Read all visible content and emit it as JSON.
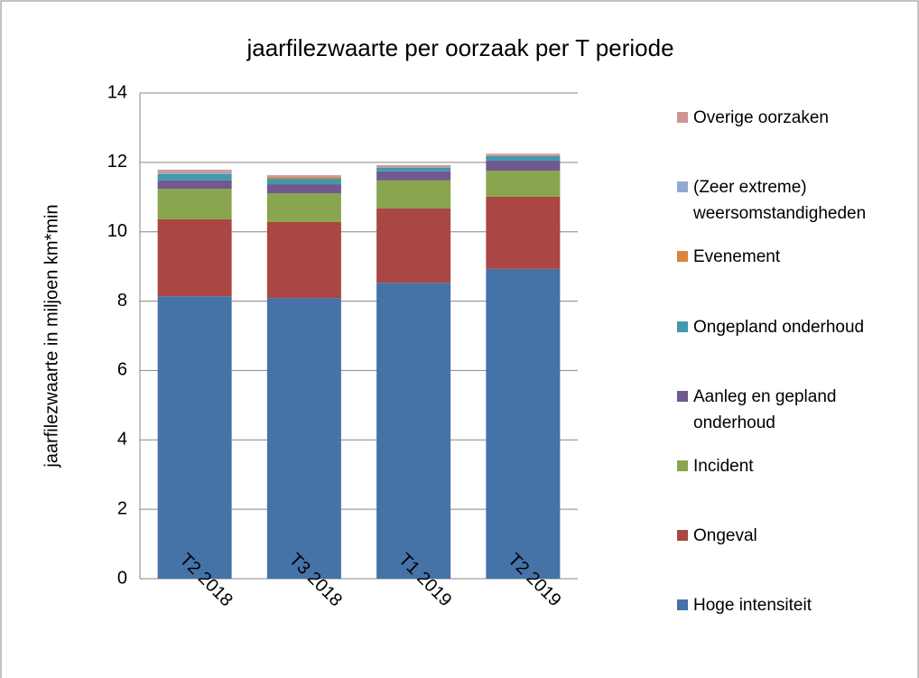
{
  "chart_data": {
    "type": "stacked_bar",
    "title": "jaarfilezwaarte per oorzaak per T periode",
    "y_label": "jaarfilezwaarte in miljoen km*min",
    "categories": [
      "T2 2018",
      "T3 2018",
      "T1 2019",
      "T2 2019"
    ],
    "series": [
      {
        "name": "Hoge intensiteit",
        "color": "#4572a7",
        "values": [
          8.14,
          8.09,
          8.53,
          8.93
        ]
      },
      {
        "name": "Ongeval",
        "color": "#aa4643",
        "values": [
          2.22,
          2.19,
          2.14,
          2.08
        ]
      },
      {
        "name": "Incident",
        "color": "#89a54e",
        "values": [
          0.88,
          0.83,
          0.81,
          0.75
        ]
      },
      {
        "name": "Aanleg en gepland onderhoud",
        "color": "#71588f",
        "values": [
          0.24,
          0.26,
          0.26,
          0.29
        ]
      },
      {
        "name": "Ongepland onderhoud",
        "color": "#4198af",
        "values": [
          0.18,
          0.16,
          0.1,
          0.13
        ]
      },
      {
        "name": "Evenement",
        "color": "#db843d",
        "values": [
          0.02,
          0.05,
          0.01,
          0.02
        ]
      },
      {
        "name": "(Zeer extreme) weersomstandigheden",
        "color": "#93a9cf",
        "values": [
          0.06,
          0.01,
          0.03,
          0.02
        ]
      },
      {
        "name": "Overige oorzaken",
        "color": "#d19392",
        "values": [
          0.05,
          0.04,
          0.04,
          0.03
        ]
      }
    ],
    "ylim": [
      0,
      14
    ],
    "yticks": [
      0,
      2,
      4,
      6,
      8,
      10,
      12,
      14
    ],
    "grid": true,
    "legend": "right"
  }
}
